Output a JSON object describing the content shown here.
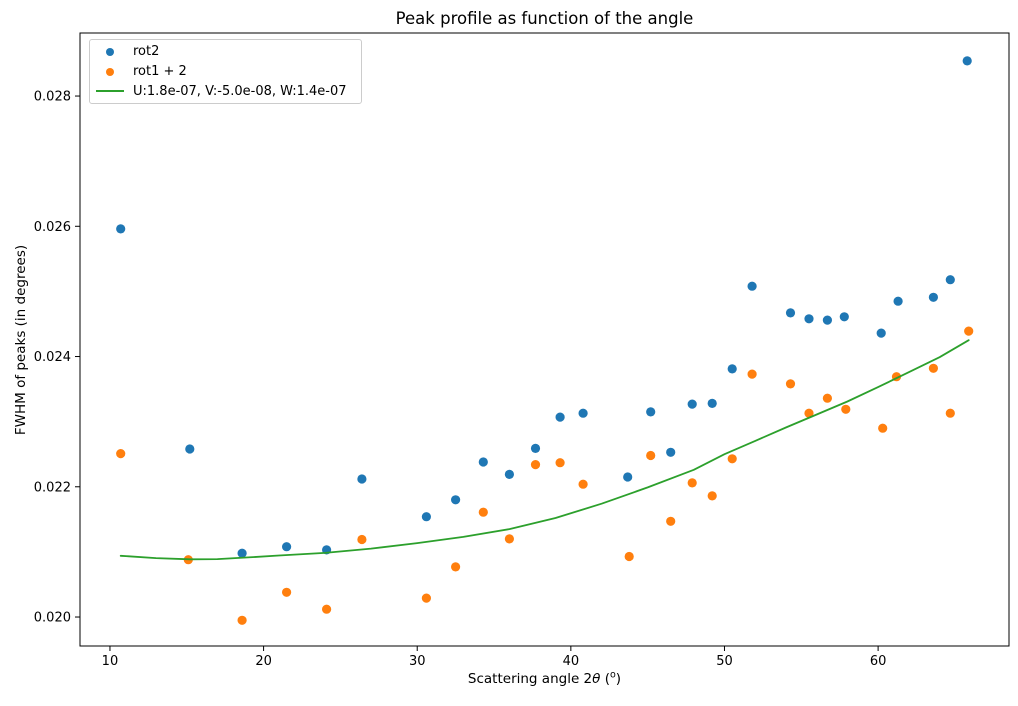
{
  "figure": {
    "title": "Peak profile as function of the angle",
    "ylabel": "FWHM of peaks (in degrees)",
    "xlabel_parts": {
      "pre": "Scattering angle 2",
      "theta": "θ",
      "open": " (",
      "sup": "o",
      "close": ")"
    }
  },
  "chart_data": {
    "type": "scatter",
    "title": "Peak profile as function of the angle",
    "xlabel": "Scattering angle 2θ (°)",
    "ylabel": "FWHM of peaks (in degrees)",
    "xlim": [
      8.05,
      68.52
    ],
    "ylim": [
      0.019555,
      0.028968
    ],
    "xticks": [
      10,
      20,
      30,
      40,
      50,
      60
    ],
    "xtick_labels": [
      "10",
      "20",
      "30",
      "40",
      "50",
      "60"
    ],
    "yticks": [
      0.02,
      0.022,
      0.024,
      0.026,
      0.028
    ],
    "ytick_labels": [
      "0.020",
      "0.022",
      "0.024",
      "0.026",
      "0.028"
    ],
    "grid": false,
    "legend_position": "upper left",
    "series": [
      {
        "name": "rot2",
        "type": "scatter",
        "color": "#1f77b4",
        "points": [
          [
            10.7,
            0.02596
          ],
          [
            15.2,
            0.02258
          ],
          [
            18.6,
            0.02098
          ],
          [
            21.5,
            0.02108
          ],
          [
            24.1,
            0.02103
          ],
          [
            26.4,
            0.02212
          ],
          [
            30.6,
            0.02154
          ],
          [
            32.5,
            0.0218
          ],
          [
            34.3,
            0.02238
          ],
          [
            36.0,
            0.02219
          ],
          [
            37.7,
            0.02259
          ],
          [
            39.3,
            0.02307
          ],
          [
            40.8,
            0.02313
          ],
          [
            43.7,
            0.02215
          ],
          [
            45.2,
            0.02315
          ],
          [
            46.5,
            0.02253
          ],
          [
            47.9,
            0.02327
          ],
          [
            49.2,
            0.02328
          ],
          [
            50.5,
            0.02381
          ],
          [
            51.8,
            0.02508
          ],
          [
            54.3,
            0.02467
          ],
          [
            55.5,
            0.02458
          ],
          [
            56.7,
            0.02456
          ],
          [
            57.8,
            0.02461
          ],
          [
            60.2,
            0.02436
          ],
          [
            61.3,
            0.02485
          ],
          [
            63.6,
            0.02491
          ],
          [
            64.7,
            0.02518
          ],
          [
            65.8,
            0.02854
          ]
        ]
      },
      {
        "name": "rot1 + 2",
        "type": "scatter",
        "color": "#ff7f0e",
        "points": [
          [
            10.7,
            0.02251
          ],
          [
            15.1,
            0.02088
          ],
          [
            18.6,
            0.01995
          ],
          [
            21.5,
            0.02038
          ],
          [
            24.1,
            0.02012
          ],
          [
            26.4,
            0.02119
          ],
          [
            30.6,
            0.02029
          ],
          [
            32.5,
            0.02077
          ],
          [
            34.3,
            0.02161
          ],
          [
            36.0,
            0.0212
          ],
          [
            37.7,
            0.02234
          ],
          [
            39.3,
            0.02237
          ],
          [
            40.8,
            0.02204
          ],
          [
            43.8,
            0.02093
          ],
          [
            45.2,
            0.02248
          ],
          [
            46.5,
            0.02147
          ],
          [
            47.9,
            0.02206
          ],
          [
            49.2,
            0.02186
          ],
          [
            50.5,
            0.02243
          ],
          [
            51.8,
            0.02373
          ],
          [
            54.3,
            0.02358
          ],
          [
            55.5,
            0.02313
          ],
          [
            56.7,
            0.02336
          ],
          [
            57.9,
            0.02319
          ],
          [
            60.3,
            0.0229
          ],
          [
            61.2,
            0.02369
          ],
          [
            63.6,
            0.02382
          ],
          [
            64.7,
            0.02313
          ],
          [
            65.9,
            0.02439
          ]
        ]
      },
      {
        "name": "U:1.8e-07, V:-5.0e-08, W:1.4e-07",
        "type": "line",
        "color": "#2ca02c",
        "points": [
          [
            10.7,
            0.02094
          ],
          [
            13.0,
            0.020905
          ],
          [
            15.2,
            0.020886
          ],
          [
            17.0,
            0.02089
          ],
          [
            19.0,
            0.020915
          ],
          [
            21.0,
            0.020945
          ],
          [
            24.0,
            0.020985
          ],
          [
            27.0,
            0.02105
          ],
          [
            30.0,
            0.021135
          ],
          [
            33.0,
            0.02123
          ],
          [
            36.0,
            0.02135
          ],
          [
            39.0,
            0.02152
          ],
          [
            42.0,
            0.02174
          ],
          [
            45.0,
            0.02199
          ],
          [
            48.0,
            0.02226
          ],
          [
            50.0,
            0.0225
          ],
          [
            52.0,
            0.022705
          ],
          [
            54.0,
            0.02291
          ],
          [
            56.0,
            0.02311
          ],
          [
            58.0,
            0.02331
          ],
          [
            60.0,
            0.02353
          ],
          [
            62.0,
            0.02376
          ],
          [
            64.0,
            0.02399
          ],
          [
            65.9,
            0.02425
          ]
        ]
      }
    ]
  }
}
